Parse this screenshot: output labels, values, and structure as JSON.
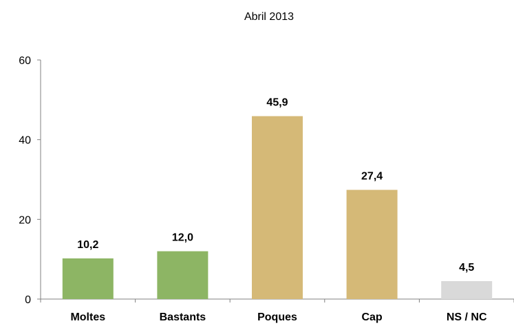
{
  "chart_data": {
    "type": "bar",
    "title": "Abril 2013",
    "xlabel": "",
    "ylabel": "",
    "categories": [
      "Moltes",
      "Bastants",
      "Poques",
      "Cap",
      "NS / NC"
    ],
    "values": [
      10.2,
      12.0,
      45.9,
      27.4,
      4.5
    ],
    "value_labels": [
      "10,2",
      "12,0",
      "45,9",
      "27,4",
      "4,5"
    ],
    "bar_colors": [
      "#8db564",
      "#8db564",
      "#d5b977",
      "#d5b977",
      "#d9d9d9"
    ],
    "ylim": [
      0,
      60
    ],
    "yticks": [
      0,
      20,
      40,
      60
    ],
    "ytick_labels": [
      "0",
      "20",
      "40",
      "60"
    ],
    "grid": false,
    "legend": "none"
  }
}
